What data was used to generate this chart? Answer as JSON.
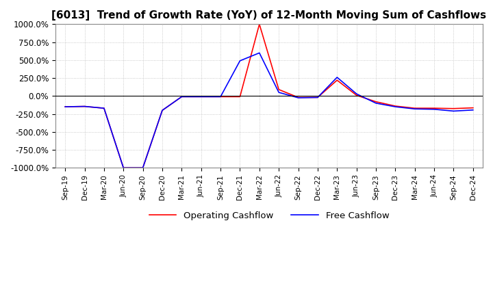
{
  "title": "[6013]  Trend of Growth Rate (YoY) of 12-Month Moving Sum of Cashflows",
  "title_fontsize": 11,
  "ylim": [
    -1000,
    1000
  ],
  "yticks": [
    -1000,
    -750,
    -500,
    -250,
    0,
    250,
    500,
    750,
    1000
  ],
  "ytick_labels": [
    "-1000.0%",
    "-750.0%",
    "-500.0%",
    "-250.0%",
    "0.0%",
    "250.0%",
    "500.0%",
    "750.0%",
    "1000.0%"
  ],
  "background_color": "#ffffff",
  "grid_color": "#bbbbbb",
  "x_labels": [
    "Sep-19",
    "Dec-19",
    "Mar-20",
    "Jun-20",
    "Sep-20",
    "Dec-20",
    "Mar-21",
    "Jun-21",
    "Sep-21",
    "Dec-21",
    "Mar-22",
    "Jun-22",
    "Sep-22",
    "Dec-22",
    "Mar-23",
    "Jun-23",
    "Sep-23",
    "Dec-23",
    "Mar-24",
    "Jun-24",
    "Sep-24",
    "Dec-24"
  ],
  "operating_cashflow": [
    -150,
    -145,
    -170,
    -1000,
    -1000,
    -200,
    -10,
    -10,
    -10,
    -10,
    1000,
    90,
    -20,
    -20,
    220,
    10,
    -80,
    -140,
    -170,
    -170,
    -175,
    -165
  ],
  "free_cashflow": [
    -150,
    -145,
    -170,
    -1000,
    -1000,
    -200,
    -10,
    -10,
    -10,
    490,
    600,
    50,
    -25,
    -20,
    260,
    30,
    -100,
    -150,
    -180,
    -185,
    -210,
    -195
  ],
  "operating_color": "#ff0000",
  "free_color": "#0000ff",
  "legend_labels": [
    "Operating Cashflow",
    "Free Cashflow"
  ]
}
